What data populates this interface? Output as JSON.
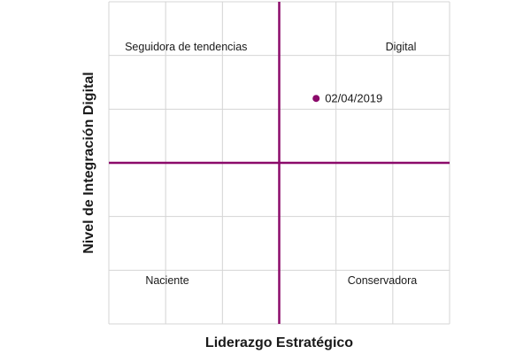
{
  "chart_data": {
    "type": "scatter",
    "title": "",
    "xlabel": "Liderazgo Estratégico",
    "ylabel": "Nivel de Integración Digital",
    "xlim": [
      0,
      6
    ],
    "ylim": [
      0,
      6
    ],
    "grid": true,
    "midpoint": {
      "x": 3,
      "y": 3
    },
    "quadrants": [
      {
        "name": "seguidora",
        "label": "Seguidora de tendencias",
        "position": "top-left"
      },
      {
        "name": "digital",
        "label": "Digital",
        "position": "top-right"
      },
      {
        "name": "naciente",
        "label": "Naciente",
        "position": "bottom-left"
      },
      {
        "name": "conservadora",
        "label": "Conservadora",
        "position": "bottom-right"
      }
    ],
    "points": [
      {
        "label": "02/04/2019",
        "x": 3.65,
        "y": 4.2
      }
    ],
    "colors": {
      "accent": "#8b0a6a",
      "grid": "#d4d4d4",
      "text": "#1a1a1a"
    }
  }
}
